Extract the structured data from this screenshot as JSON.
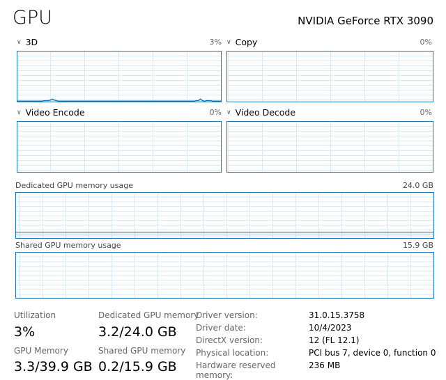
{
  "header": {
    "title": "GPU",
    "gpu_name": "NVIDIA GeForce RTX 3090"
  },
  "engines": [
    {
      "label": "3D",
      "percent": "3%",
      "history": [
        1,
        1,
        1,
        1,
        1,
        1,
        1,
        1,
        1,
        1,
        1,
        1,
        1,
        2,
        2,
        2,
        3,
        5,
        3,
        2,
        1,
        1,
        1,
        1,
        1,
        1,
        1,
        1,
        1,
        1,
        1,
        1,
        1,
        1,
        1,
        1,
        1,
        1,
        1,
        1,
        1,
        1,
        1,
        1,
        1,
        1,
        1,
        1,
        1,
        1,
        1,
        1,
        1,
        1,
        1,
        1,
        1,
        1,
        1,
        1,
        1,
        1,
        1,
        1,
        1,
        1,
        1,
        1,
        1,
        1,
        1,
        1,
        1,
        1,
        1,
        1,
        1,
        1,
        1,
        1,
        1,
        1,
        1,
        1,
        1,
        1,
        1,
        2,
        2,
        5,
        2,
        1,
        2,
        2,
        2,
        1,
        1,
        1,
        1,
        1
      ]
    },
    {
      "label": "Copy",
      "percent": "0%"
    },
    {
      "label": "Video Encode",
      "percent": "0%"
    },
    {
      "label": "Video Decode",
      "percent": "0%"
    }
  ],
  "dedicated_graph": {
    "label": "Dedicated GPU memory usage",
    "max": "24.0 GB",
    "used_fraction": 0.133
  },
  "shared_graph": {
    "label": "Shared GPU memory usage",
    "max": "15.9 GB",
    "used_fraction": 0.013
  },
  "stats": {
    "utilization": {
      "label": "Utilization",
      "value": "3%"
    },
    "dedicated": {
      "label": "Dedicated GPU memory",
      "value": "3.2/24.0 GB"
    },
    "gpu_memory": {
      "label": "GPU Memory",
      "value": "3.3/39.9 GB"
    },
    "shared": {
      "label": "Shared GPU memory",
      "value": "0.2/15.9 GB"
    }
  },
  "properties": [
    {
      "label": "Driver version:",
      "value": "31.0.15.3758"
    },
    {
      "label": "Driver date:",
      "value": "10/4/2023"
    },
    {
      "label": "DirectX version:",
      "value": "12 (FL 12.1)"
    },
    {
      "label": "Physical location:",
      "value": "PCI bus 7, device 0, function 0"
    },
    {
      "label": "Hardware reserved memory:",
      "value": "236 MB"
    }
  ],
  "colors": {
    "accent": "#1e78b4",
    "grid": "#d9eaf6"
  }
}
